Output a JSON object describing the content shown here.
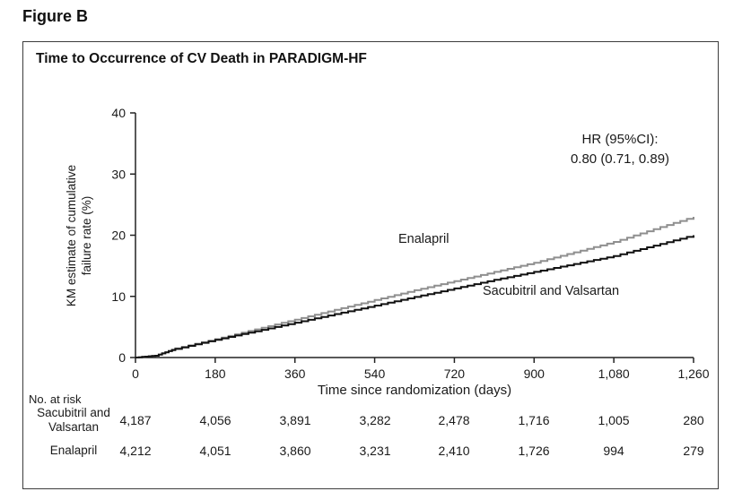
{
  "figure_label": "Figure B",
  "chart_data": {
    "type": "line",
    "title": "Time to Occurrence of CV Death in PARADIGM-HF",
    "xlabel": "Time since randomization (days)",
    "ylabel": "KM estimate of cumulative failure rate (%)",
    "xlim": [
      0,
      1260
    ],
    "ylim": [
      0,
      40
    ],
    "grid": false,
    "x_ticks": [
      0,
      180,
      360,
      540,
      720,
      900,
      1080,
      1260
    ],
    "x_tick_labels": [
      "0",
      "180",
      "360",
      "540",
      "720",
      "900",
      "1,080",
      "1,260"
    ],
    "y_ticks": [
      0,
      10,
      20,
      30,
      40
    ],
    "y_tick_labels": [
      "0",
      "10",
      "20",
      "30",
      "40"
    ],
    "hr_annotation": [
      "HR (95%CI):",
      "0.80 (0.71, 0.89)"
    ],
    "series": [
      {
        "name": "Enalapril",
        "color": "#8f8f8f",
        "x": [
          0,
          45,
          90,
          180,
          270,
          360,
          450,
          540,
          630,
          720,
          810,
          900,
          990,
          1080,
          1170,
          1260
        ],
        "y": [
          0,
          0.3,
          1.5,
          3.0,
          4.6,
          6.2,
          7.8,
          9.4,
          11.0,
          12.5,
          14.0,
          15.5,
          17.2,
          18.9,
          21.0,
          23.0
        ]
      },
      {
        "name": "Sacubitril and Valsartan",
        "color": "#111111",
        "x": [
          0,
          45,
          90,
          180,
          270,
          360,
          450,
          540,
          630,
          720,
          810,
          900,
          990,
          1080,
          1170,
          1260
        ],
        "y": [
          0,
          0.3,
          1.4,
          2.9,
          4.3,
          5.7,
          7.1,
          8.5,
          9.9,
          11.3,
          12.7,
          14.0,
          15.3,
          16.6,
          18.3,
          20.0
        ]
      }
    ],
    "risk_table": {
      "header": "No. at risk",
      "rows": [
        {
          "label": "Sacubitril and Valsartan",
          "values": [
            "4,187",
            "4,056",
            "3,891",
            "3,282",
            "2,478",
            "1,716",
            "1,005",
            "280"
          ]
        },
        {
          "label": "Enalapril",
          "values": [
            "4,212",
            "4,051",
            "3,860",
            "3,231",
            "2,410",
            "1,726",
            "994",
            "279"
          ]
        }
      ]
    }
  }
}
